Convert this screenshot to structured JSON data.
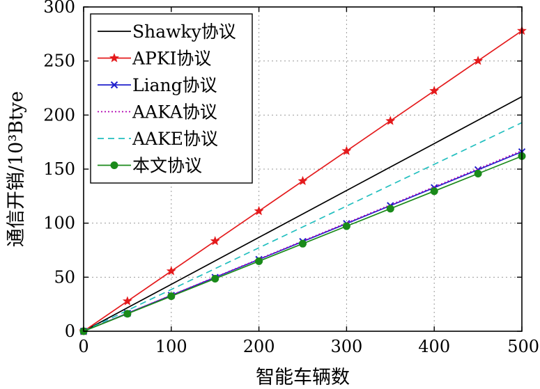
{
  "chart_data": {
    "type": "line",
    "xlabel": "智能车辆数",
    "ylabel": "通信开销/10³Btye",
    "xlim": [
      0,
      500
    ],
    "ylim": [
      0,
      300
    ],
    "x_ticks": [
      0,
      100,
      200,
      300,
      400,
      500
    ],
    "y_ticks": [
      0,
      50,
      100,
      150,
      200,
      250,
      300
    ],
    "grid": true,
    "legend_position": "top-left",
    "x": [
      0,
      50,
      100,
      150,
      200,
      250,
      300,
      350,
      400,
      450,
      500
    ],
    "series": [
      {
        "name": "Shawky协议",
        "color": "#000000",
        "dash": "solid",
        "marker": "none",
        "values": [
          0,
          21.7,
          43.4,
          65.1,
          86.8,
          108.5,
          130.2,
          151.9,
          173.6,
          195.3,
          217.0
        ]
      },
      {
        "name": "APKI协议",
        "color": "#e41a1c",
        "dash": "solid",
        "marker": "star",
        "values": [
          0,
          27.8,
          55.6,
          83.4,
          111.2,
          139.0,
          166.8,
          194.6,
          222.4,
          250.2,
          278.0
        ]
      },
      {
        "name": "Liang协议",
        "color": "#1f1fcc",
        "dash": "solid",
        "marker": "x",
        "values": [
          0,
          16.6,
          33.2,
          49.8,
          66.4,
          83.0,
          99.6,
          116.2,
          132.8,
          149.4,
          166.0
        ]
      },
      {
        "name": "AAKA协议",
        "color": "#b000b0",
        "dash": "dotted",
        "marker": "none",
        "values": [
          0,
          16.7,
          33.4,
          50.1,
          66.8,
          83.5,
          100.2,
          116.9,
          133.6,
          150.3,
          167.0
        ]
      },
      {
        "name": "AAKE协议",
        "color": "#22bfbf",
        "dash": "dashed",
        "marker": "none",
        "values": [
          0,
          19.3,
          38.6,
          57.9,
          77.2,
          96.5,
          115.8,
          135.1,
          154.4,
          173.7,
          193.0
        ]
      },
      {
        "name": "本文协议",
        "color": "#1a8a1a",
        "dash": "solid",
        "marker": "circle",
        "values": [
          0,
          16.2,
          32.4,
          48.6,
          64.8,
          81.0,
          97.2,
          113.4,
          129.6,
          145.8,
          162.0
        ]
      }
    ]
  }
}
